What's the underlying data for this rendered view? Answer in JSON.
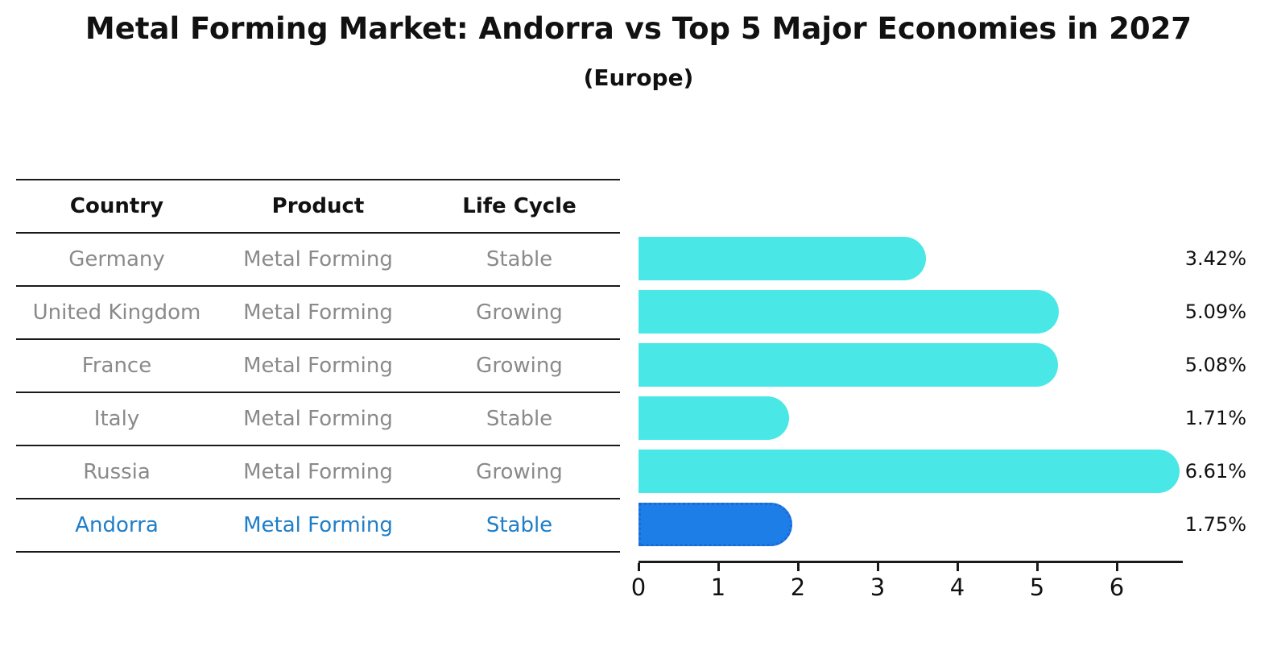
{
  "chart_data": {
    "type": "bar",
    "orientation": "horizontal",
    "title": "Metal Forming Market: Andorra vs Top 5 Major Economies in 2027",
    "subtitle": "(Europe)",
    "categories": [
      "Germany",
      "United Kingdom",
      "France",
      "Italy",
      "Russia",
      "Andorra"
    ],
    "values": [
      3.42,
      5.09,
      5.08,
      1.71,
      6.61,
      1.75
    ],
    "value_labels": [
      "3.42%",
      "5.09%",
      "5.08%",
      "1.71%",
      "6.61%",
      "1.75%"
    ],
    "highlight_index": 5,
    "x_ticks": [
      0,
      1,
      2,
      3,
      4,
      5,
      6
    ],
    "xlim": [
      0,
      6.8
    ],
    "grid": false,
    "legend": "none",
    "bar_color": "#4ae7e7",
    "highlight_bar_color": "#1e7ee8",
    "highlight_border_color": "#1a6ad6"
  },
  "table": {
    "headers": [
      "Country",
      "Product",
      "Life Cycle"
    ],
    "rows": [
      {
        "country": "Germany",
        "product": "Metal Forming",
        "life_cycle": "Stable",
        "highlight": false
      },
      {
        "country": "United Kingdom",
        "product": "Metal Forming",
        "life_cycle": "Growing",
        "highlight": false
      },
      {
        "country": "France",
        "product": "Metal Forming",
        "life_cycle": "Growing",
        "highlight": false
      },
      {
        "country": "Italy",
        "product": "Metal Forming",
        "life_cycle": "Stable",
        "highlight": false
      },
      {
        "country": "Russia",
        "product": "Metal Forming",
        "life_cycle": "Growing",
        "highlight": false
      },
      {
        "country": "Andorra",
        "product": "Metal Forming",
        "life_cycle": "Stable",
        "highlight": true
      }
    ]
  },
  "colors": {
    "text_primary": "#111111",
    "text_muted": "#8a8a8a",
    "highlight_text": "#1e7ec8",
    "axis": "#1a1a1a"
  }
}
